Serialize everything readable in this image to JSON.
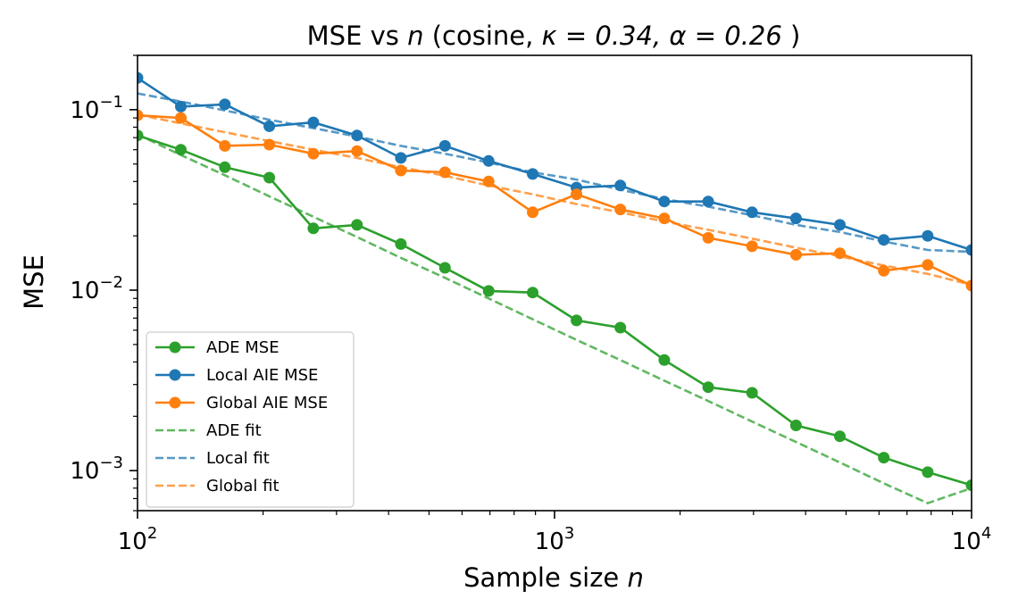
{
  "chart_data": {
    "type": "line",
    "title_prefix": "MSE vs ",
    "title_n": "n",
    "title_params": " (cosine, ",
    "title_kappa": "κ = 0.34, ",
    "title_alpha": "α = 0.26",
    "title_suffix": " )",
    "xlabel": "Sample size ",
    "xlabel_var": "n",
    "ylabel": "MSE",
    "xscale": "log",
    "yscale": "log",
    "xlim": [
      100,
      10000
    ],
    "ylim": [
      0.0006,
      0.2
    ],
    "x_ticks": [
      {
        "base": "10",
        "exp": "2",
        "value": 100
      },
      {
        "base": "10",
        "exp": "3",
        "value": 1000
      },
      {
        "base": "10",
        "exp": "4",
        "value": 10000
      }
    ],
    "y_ticks": [
      {
        "base": "10",
        "exp": "−1",
        "value": 0.1
      },
      {
        "base": "10",
        "exp": "−2",
        "value": 0.01
      },
      {
        "base": "10",
        "exp": "−3",
        "value": 0.001
      }
    ],
    "grid": false,
    "legend_position": "lower-left",
    "x": [
      100,
      127,
      162,
      207,
      264,
      336,
      428,
      546,
      695,
      886,
      1129,
      1438,
      1833,
      2336,
      2976,
      3793,
      4833,
      6158,
      7848,
      10000
    ],
    "series": [
      {
        "name": "ADE MSE",
        "color": "#2ca02c",
        "style": "solid-markers",
        "values": [
          0.072,
          0.06,
          0.048,
          0.042,
          0.022,
          0.023,
          0.018,
          0.0133,
          0.0099,
          0.0097,
          0.0068,
          0.0062,
          0.0041,
          0.0029,
          0.0027,
          0.00178,
          0.00155,
          0.00118,
          0.00098,
          0.00083
        ]
      },
      {
        "name": "Local AIE MSE",
        "color": "#1f77b4",
        "style": "solid-markers",
        "values": [
          0.15,
          0.104,
          0.107,
          0.081,
          0.085,
          0.072,
          0.054,
          0.063,
          0.052,
          0.044,
          0.037,
          0.038,
          0.031,
          0.031,
          0.027,
          0.025,
          0.023,
          0.019,
          0.02,
          0.0167
        ]
      },
      {
        "name": "Global AIE MSE",
        "color": "#ff7f0e",
        "style": "solid-markers",
        "values": [
          0.093,
          0.09,
          0.063,
          0.064,
          0.057,
          0.059,
          0.046,
          0.045,
          0.04,
          0.027,
          0.034,
          0.028,
          0.025,
          0.0195,
          0.0175,
          0.0157,
          0.016,
          0.0128,
          0.0138,
          0.0106
        ]
      },
      {
        "name": "ADE fit",
        "color": "#2ca02c",
        "style": "dashed",
        "values": [
          0.073,
          0.0561,
          0.0433,
          0.0331,
          0.0255,
          0.0197,
          0.0151,
          0.0117,
          0.009,
          0.0069,
          0.0053,
          0.0041,
          0.00315,
          0.00243,
          0.00187,
          0.00144,
          0.00111,
          0.00085,
          0.00066,
          0.0008
        ]
      },
      {
        "name": "Local fit",
        "color": "#1f77b4",
        "style": "dashed",
        "values": [
          0.123,
          0.111,
          0.099,
          0.088,
          0.079,
          0.071,
          0.063,
          0.057,
          0.051,
          0.045,
          0.041,
          0.036,
          0.032,
          0.029,
          0.026,
          0.023,
          0.021,
          0.0186,
          0.0167,
          0.0163
        ]
      },
      {
        "name": "Global fit",
        "color": "#ff7f0e",
        "style": "dashed",
        "values": [
          0.094,
          0.084,
          0.075,
          0.067,
          0.06,
          0.054,
          0.048,
          0.043,
          0.038,
          0.034,
          0.03,
          0.027,
          0.024,
          0.0216,
          0.0193,
          0.0172,
          0.0154,
          0.0137,
          0.0123,
          0.0107
        ]
      }
    ]
  }
}
